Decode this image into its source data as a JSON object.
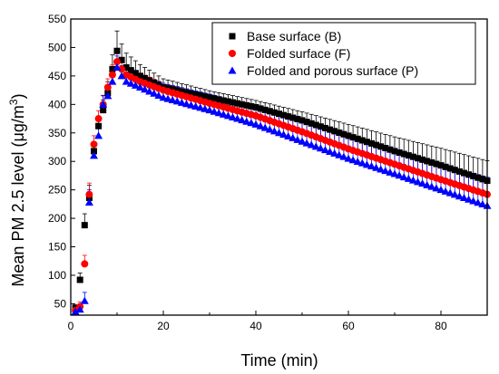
{
  "chart_data": {
    "type": "scatter",
    "title": "",
    "xlabel": "Time (min)",
    "ylabel_main": "Mean PM 2.5 level (",
    "ylabel_unit_base": "μg/m",
    "ylabel_unit_sup": "3",
    "ylabel_close": ")",
    "xlim": [
      0,
      90
    ],
    "ylim": [
      30,
      550
    ],
    "x_ticks": [
      "0",
      "20",
      "40",
      "60",
      "80"
    ],
    "y_ticks": [
      "50",
      "100",
      "150",
      "200",
      "250",
      "300",
      "350",
      "400",
      "450",
      "500",
      "550"
    ],
    "legend_placement": "top-right",
    "grid": false,
    "series": [
      {
        "name": "Base surface (B)",
        "marker": "square",
        "color": "#000000",
        "errorbar_color": "#000000",
        "points": [
          [
            1,
            43
          ],
          [
            2,
            92
          ],
          [
            3,
            188
          ],
          [
            4,
            236
          ],
          [
            5,
            318
          ],
          [
            6,
            362
          ],
          [
            7,
            390
          ],
          [
            8,
            420
          ],
          [
            9,
            462
          ],
          [
            10,
            494
          ],
          [
            11,
            478
          ],
          [
            12,
            465
          ],
          [
            15,
            450
          ],
          [
            20,
            430
          ],
          [
            30,
            412
          ],
          [
            40,
            395
          ],
          [
            50,
            372
          ],
          [
            60,
            345
          ],
          [
            70,
            318
          ],
          [
            80,
            293
          ],
          [
            90,
            266
          ]
        ],
        "errors": [
          [
            1,
            5
          ],
          [
            2,
            12
          ],
          [
            3,
            20
          ],
          [
            4,
            22
          ],
          [
            5,
            15
          ],
          [
            6,
            15
          ],
          [
            7,
            18
          ],
          [
            8,
            20
          ],
          [
            9,
            25
          ],
          [
            10,
            35
          ],
          [
            11,
            28
          ],
          [
            12,
            25
          ],
          [
            15,
            20
          ],
          [
            20,
            15
          ],
          [
            30,
            12
          ],
          [
            40,
            12
          ],
          [
            50,
            15
          ],
          [
            60,
            20
          ],
          [
            70,
            25
          ],
          [
            80,
            30
          ],
          [
            90,
            35
          ]
        ]
      },
      {
        "name": "Folded surface (F)",
        "marker": "circle",
        "color": "#ff0000",
        "errorbar_color": "#ff0000",
        "points": [
          [
            1,
            38
          ],
          [
            2,
            45
          ],
          [
            3,
            120
          ],
          [
            4,
            242
          ],
          [
            5,
            330
          ],
          [
            6,
            375
          ],
          [
            7,
            400
          ],
          [
            8,
            430
          ],
          [
            9,
            452
          ],
          [
            10,
            475
          ],
          [
            11,
            462
          ],
          [
            12,
            452
          ],
          [
            15,
            440
          ],
          [
            20,
            425
          ],
          [
            30,
            402
          ],
          [
            40,
            380
          ],
          [
            50,
            352
          ],
          [
            60,
            322
          ],
          [
            70,
            295
          ],
          [
            80,
            268
          ],
          [
            90,
            242
          ]
        ],
        "errors": [
          [
            1,
            4
          ],
          [
            2,
            8
          ],
          [
            3,
            15
          ],
          [
            4,
            20
          ],
          [
            5,
            15
          ],
          [
            6,
            14
          ],
          [
            7,
            15
          ],
          [
            8,
            15
          ],
          [
            9,
            18
          ],
          [
            10,
            20
          ],
          [
            11,
            18
          ],
          [
            12,
            16
          ],
          [
            15,
            15
          ],
          [
            20,
            12
          ],
          [
            30,
            12
          ],
          [
            40,
            14
          ],
          [
            50,
            16
          ],
          [
            60,
            18
          ],
          [
            70,
            20
          ],
          [
            80,
            22
          ],
          [
            90,
            25
          ]
        ]
      },
      {
        "name": "Folded and porous surface (P)",
        "marker": "triangle",
        "color": "#0000ff",
        "errorbar_color": "#0000ff",
        "points": [
          [
            1,
            36
          ],
          [
            2,
            40
          ],
          [
            3,
            55
          ],
          [
            4,
            228
          ],
          [
            5,
            310
          ],
          [
            6,
            345
          ],
          [
            7,
            400
          ],
          [
            8,
            415
          ],
          [
            9,
            440
          ],
          [
            10,
            465
          ],
          [
            11,
            450
          ],
          [
            12,
            440
          ],
          [
            15,
            430
          ],
          [
            20,
            412
          ],
          [
            30,
            390
          ],
          [
            40,
            365
          ],
          [
            50,
            335
          ],
          [
            60,
            305
          ],
          [
            70,
            278
          ],
          [
            80,
            250
          ],
          [
            90,
            222
          ]
        ],
        "errors": [
          [
            1,
            4
          ],
          [
            2,
            6
          ],
          [
            3,
            15
          ],
          [
            4,
            22
          ],
          [
            5,
            18
          ],
          [
            6,
            16
          ],
          [
            7,
            16
          ],
          [
            8,
            16
          ],
          [
            9,
            18
          ],
          [
            10,
            20
          ],
          [
            11,
            18
          ],
          [
            12,
            20
          ],
          [
            15,
            22
          ],
          [
            20,
            25
          ],
          [
            30,
            28
          ],
          [
            40,
            32
          ],
          [
            50,
            35
          ],
          [
            60,
            38
          ],
          [
            70,
            42
          ],
          [
            80,
            46
          ],
          [
            90,
            50
          ]
        ]
      }
    ]
  }
}
